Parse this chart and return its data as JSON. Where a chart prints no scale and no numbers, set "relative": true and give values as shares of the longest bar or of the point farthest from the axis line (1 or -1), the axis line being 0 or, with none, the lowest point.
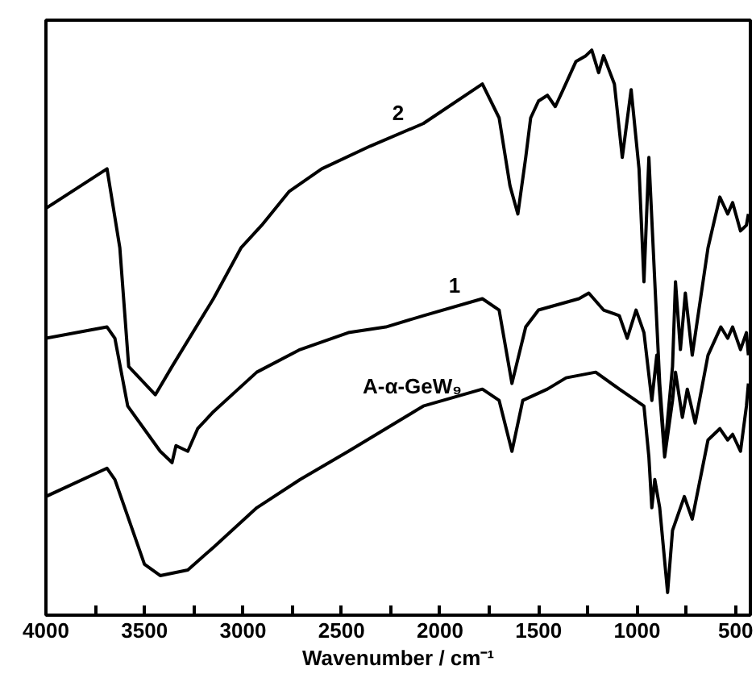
{
  "chart_data": {
    "type": "line",
    "relative": true,
    "xlabel": "Wavenumber / cm⁻¹",
    "xlim": [
      4000,
      425
    ],
    "xticks": [
      4000,
      {
        "value": 3750,
        "label": null
      },
      3500,
      {
        "value": 3250,
        "label": null
      },
      3000,
      {
        "value": 2750,
        "label": null
      },
      2500,
      {
        "value": 2250,
        "label": null
      },
      2000,
      {
        "value": 1750,
        "label": null
      },
      1500,
      {
        "value": 1250,
        "label": null
      },
      1000,
      {
        "value": 750,
        "label": null
      },
      500
    ],
    "tick_labels": "x",
    "grid": false,
    "marker": "none",
    "line_style": "solid",
    "series": [
      {
        "name": "2",
        "color": "#000000",
        "x": [
          4000,
          3690,
          3625,
          3580,
          3445,
          3360,
          3150,
          3010,
          2905,
          2765,
          2600,
          2355,
          2085,
          1785,
          1700,
          1645,
          1605,
          1565,
          1540,
          1500,
          1455,
          1415,
          1375,
          1310,
          1260,
          1230,
          1195,
          1170,
          1115,
          1075,
          1030,
          990,
          965,
          940,
          910,
          885,
          860,
          820,
          805,
          780,
          755,
          720,
          640,
          580,
          540,
          515,
          475,
          445,
          435
        ],
        "values": [
          0.72,
          0.79,
          0.65,
          0.44,
          0.39,
          0.44,
          0.56,
          0.65,
          0.69,
          0.75,
          0.79,
          0.83,
          0.87,
          0.94,
          0.88,
          0.76,
          0.71,
          0.81,
          0.88,
          0.91,
          0.92,
          0.9,
          0.93,
          0.98,
          0.99,
          1.0,
          0.96,
          0.99,
          0.94,
          0.81,
          0.93,
          0.79,
          0.59,
          0.81,
          0.59,
          0.41,
          0.29,
          0.44,
          0.59,
          0.47,
          0.57,
          0.46,
          0.65,
          0.74,
          0.71,
          0.73,
          0.68,
          0.69,
          0.71
        ]
      },
      {
        "name": "1",
        "color": "#000000",
        "x": [
          4000,
          3690,
          3650,
          3585,
          3420,
          3360,
          3340,
          3280,
          3230,
          3150,
          2930,
          2710,
          2465,
          2275,
          2085,
          1785,
          1700,
          1635,
          1565,
          1500,
          1295,
          1245,
          1170,
          1090,
          1050,
          1005,
          965,
          925,
          900,
          860,
          820,
          805,
          770,
          745,
          705,
          640,
          575,
          540,
          515,
          475,
          445,
          435
        ],
        "values": [
          0.49,
          0.51,
          0.49,
          0.37,
          0.29,
          0.27,
          0.3,
          0.29,
          0.33,
          0.36,
          0.43,
          0.47,
          0.5,
          0.51,
          0.53,
          0.56,
          0.54,
          0.41,
          0.51,
          0.54,
          0.56,
          0.57,
          0.54,
          0.53,
          0.49,
          0.54,
          0.5,
          0.38,
          0.46,
          0.28,
          0.38,
          0.43,
          0.35,
          0.4,
          0.34,
          0.46,
          0.51,
          0.49,
          0.51,
          0.47,
          0.5,
          0.46
        ]
      },
      {
        "name": "A-α-GeW₉",
        "color": "#000000",
        "x": [
          4000,
          3690,
          3650,
          3560,
          3500,
          3420,
          3280,
          3150,
          2930,
          2710,
          2465,
          2275,
          2085,
          1785,
          1700,
          1635,
          1580,
          1455,
          1360,
          1210,
          1090,
          965,
          940,
          925,
          910,
          885,
          845,
          820,
          760,
          720,
          640,
          580,
          540,
          515,
          475,
          445,
          435
        ],
        "values": [
          0.21,
          0.26,
          0.24,
          0.15,
          0.09,
          0.07,
          0.08,
          0.12,
          0.19,
          0.24,
          0.29,
          0.33,
          0.37,
          0.4,
          0.38,
          0.29,
          0.38,
          0.4,
          0.42,
          0.43,
          0.4,
          0.37,
          0.28,
          0.19,
          0.24,
          0.19,
          0.04,
          0.15,
          0.21,
          0.17,
          0.31,
          0.33,
          0.31,
          0.32,
          0.29,
          0.37,
          0.41
        ]
      }
    ]
  }
}
